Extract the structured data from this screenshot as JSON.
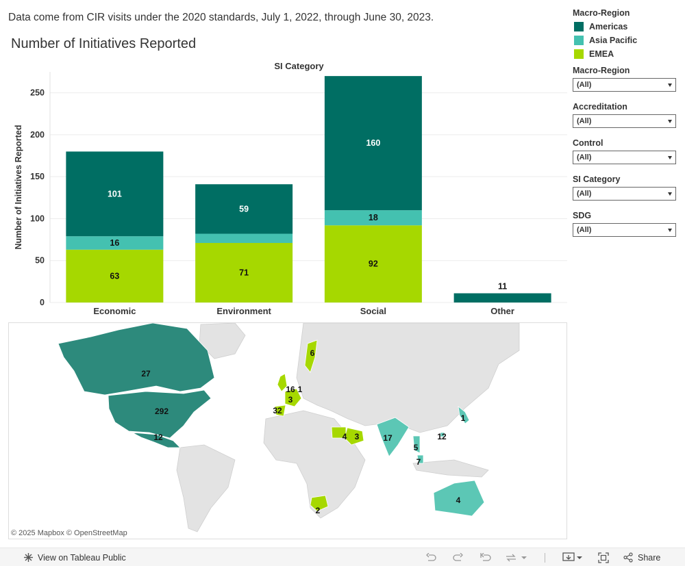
{
  "caption": "Data come from CIR visits under the 2020 standards, July 1, 2022, through June 30, 2023.",
  "title": "Number of Initiatives Reported",
  "colors": {
    "americas": "#006e63",
    "asia_pacific": "#44c1b0",
    "emea": "#a6d800"
  },
  "legend": {
    "title": "Macro-Region",
    "items": [
      {
        "label": "Americas",
        "color": "#006e63"
      },
      {
        "label": "Asia Pacific",
        "color": "#44c1b0"
      },
      {
        "label": "EMEA",
        "color": "#a6d800"
      }
    ]
  },
  "filters": [
    {
      "label": "Macro-Region",
      "value": "(All)"
    },
    {
      "label": "Accreditation",
      "value": "(All)"
    },
    {
      "label": "Control",
      "value": "(All)"
    },
    {
      "label": "SI Category",
      "value": "(All)"
    },
    {
      "label": "SDG",
      "value": "(All)"
    }
  ],
  "chart_data": {
    "type": "bar",
    "stacked": true,
    "title": "SI Category",
    "ylabel": "Number of Initiatives Reported",
    "xlabel": "",
    "categories": [
      "Economic",
      "Environment",
      "Social",
      "Other"
    ],
    "series": [
      {
        "name": "EMEA",
        "values": [
          63,
          71,
          92,
          0
        ]
      },
      {
        "name": "Asia Pacific",
        "values": [
          16,
          11,
          18,
          0
        ]
      },
      {
        "name": "Americas",
        "values": [
          101,
          59,
          160,
          11
        ]
      }
    ],
    "data_labels": [
      [
        "63",
        "16",
        "101"
      ],
      [
        "71",
        "",
        "59"
      ],
      [
        "92",
        "18",
        "160"
      ],
      [
        "",
        "",
        "11"
      ]
    ],
    "yticks": [
      0,
      50,
      100,
      150,
      200,
      250
    ],
    "ylim": [
      0,
      275
    ],
    "grid": true,
    "legend_position": "right"
  },
  "map": {
    "attribution": "© 2025 Mapbox  © OpenStreetMap",
    "labels": [
      {
        "id": "canada",
        "text": "27"
      },
      {
        "id": "usa",
        "text": "292"
      },
      {
        "id": "mexico",
        "text": "12"
      },
      {
        "id": "sweden",
        "text": "6"
      },
      {
        "id": "uk",
        "text": "16"
      },
      {
        "id": "netherlands",
        "text": "1"
      },
      {
        "id": "france",
        "text": "3"
      },
      {
        "id": "spain",
        "text": "32"
      },
      {
        "id": "egypt",
        "text": "4"
      },
      {
        "id": "saudi",
        "text": "3"
      },
      {
        "id": "india",
        "text": "17"
      },
      {
        "id": "china",
        "text": "12"
      },
      {
        "id": "japan",
        "text": "1"
      },
      {
        "id": "thailand",
        "text": "5"
      },
      {
        "id": "malaysia",
        "text": "7"
      },
      {
        "id": "australia",
        "text": "4"
      },
      {
        "id": "south-africa",
        "text": "2"
      }
    ]
  },
  "toolbar": {
    "view_label": "View on Tableau Public",
    "share_label": "Share"
  }
}
